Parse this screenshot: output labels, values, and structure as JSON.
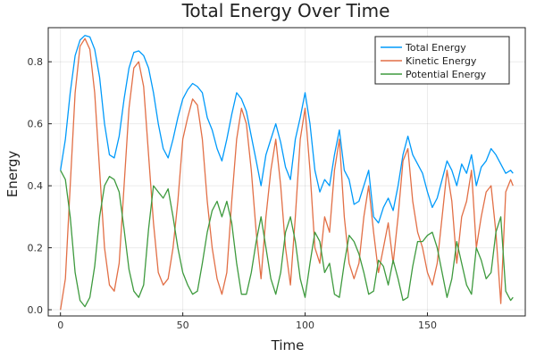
{
  "chart_data": {
    "type": "line",
    "title": "Total Energy Over Time",
    "xlabel": "Time",
    "ylabel": "Energy",
    "xlim": [
      -5,
      190
    ],
    "ylim": [
      -0.02,
      0.91
    ],
    "xticks": [
      0,
      50,
      100,
      150
    ],
    "yticks": [
      0.0,
      0.2,
      0.4,
      0.6,
      0.8
    ],
    "ytick_labels": [
      "0.0",
      "0.2",
      "0.4",
      "0.6",
      "0.8"
    ],
    "grid": true,
    "legend_position": "top-right",
    "series": [
      {
        "name": "Total Energy",
        "color": "#009AFA",
        "x": [
          0,
          2,
          4,
          6,
          8,
          10,
          12,
          14,
          16,
          18,
          20,
          22,
          24,
          26,
          28,
          30,
          32,
          34,
          36,
          38,
          40,
          42,
          44,
          46,
          48,
          50,
          52,
          54,
          56,
          58,
          60,
          62,
          64,
          66,
          68,
          70,
          72,
          74,
          76,
          78,
          80,
          82,
          84,
          86,
          88,
          90,
          92,
          94,
          96,
          98,
          100,
          102,
          104,
          106,
          108,
          110,
          112,
          114,
          116,
          118,
          120,
          122,
          124,
          126,
          128,
          130,
          132,
          134,
          136,
          138,
          140,
          142,
          144,
          146,
          148,
          150,
          152,
          154,
          156,
          158,
          160,
          162,
          164,
          166,
          168,
          170,
          172,
          174,
          176,
          178,
          180,
          182,
          184,
          185
        ],
        "y": [
          0.45,
          0.55,
          0.7,
          0.82,
          0.87,
          0.885,
          0.88,
          0.84,
          0.75,
          0.6,
          0.5,
          0.49,
          0.56,
          0.68,
          0.78,
          0.83,
          0.835,
          0.82,
          0.78,
          0.7,
          0.6,
          0.52,
          0.49,
          0.55,
          0.62,
          0.68,
          0.71,
          0.73,
          0.72,
          0.7,
          0.62,
          0.58,
          0.52,
          0.48,
          0.55,
          0.63,
          0.7,
          0.68,
          0.64,
          0.56,
          0.48,
          0.4,
          0.5,
          0.55,
          0.6,
          0.54,
          0.46,
          0.42,
          0.55,
          0.62,
          0.7,
          0.6,
          0.45,
          0.38,
          0.42,
          0.4,
          0.5,
          0.58,
          0.45,
          0.42,
          0.34,
          0.35,
          0.4,
          0.45,
          0.3,
          0.28,
          0.33,
          0.36,
          0.32,
          0.4,
          0.5,
          0.56,
          0.5,
          0.47,
          0.44,
          0.38,
          0.33,
          0.36,
          0.42,
          0.48,
          0.45,
          0.4,
          0.47,
          0.44,
          0.5,
          0.4,
          0.46,
          0.48,
          0.52,
          0.5,
          0.47,
          0.44,
          0.45,
          0.44
        ]
      },
      {
        "name": "Kinetic Energy",
        "color": "#E26F46",
        "x": [
          0,
          2,
          4,
          6,
          8,
          10,
          12,
          14,
          16,
          18,
          20,
          22,
          24,
          26,
          28,
          30,
          32,
          34,
          36,
          38,
          40,
          42,
          44,
          46,
          48,
          50,
          52,
          54,
          56,
          58,
          60,
          62,
          64,
          66,
          68,
          70,
          72,
          74,
          76,
          78,
          80,
          82,
          84,
          86,
          88,
          90,
          92,
          94,
          96,
          98,
          100,
          102,
          104,
          106,
          108,
          110,
          112,
          114,
          116,
          118,
          120,
          122,
          124,
          126,
          128,
          130,
          132,
          134,
          136,
          138,
          140,
          142,
          144,
          146,
          148,
          150,
          152,
          154,
          156,
          158,
          160,
          162,
          164,
          166,
          168,
          170,
          172,
          174,
          176,
          178,
          180,
          182,
          184,
          185
        ],
        "y": [
          0.0,
          0.1,
          0.4,
          0.7,
          0.85,
          0.875,
          0.84,
          0.7,
          0.45,
          0.2,
          0.08,
          0.06,
          0.15,
          0.4,
          0.65,
          0.78,
          0.8,
          0.72,
          0.5,
          0.28,
          0.12,
          0.08,
          0.1,
          0.2,
          0.35,
          0.55,
          0.62,
          0.68,
          0.66,
          0.55,
          0.35,
          0.2,
          0.1,
          0.05,
          0.12,
          0.35,
          0.55,
          0.65,
          0.6,
          0.45,
          0.25,
          0.1,
          0.3,
          0.45,
          0.55,
          0.4,
          0.2,
          0.08,
          0.3,
          0.55,
          0.65,
          0.45,
          0.2,
          0.15,
          0.3,
          0.25,
          0.45,
          0.55,
          0.3,
          0.15,
          0.1,
          0.15,
          0.3,
          0.4,
          0.25,
          0.12,
          0.2,
          0.28,
          0.15,
          0.3,
          0.48,
          0.52,
          0.35,
          0.25,
          0.2,
          0.12,
          0.08,
          0.15,
          0.3,
          0.45,
          0.35,
          0.15,
          0.3,
          0.35,
          0.45,
          0.2,
          0.3,
          0.38,
          0.4,
          0.25,
          0.02,
          0.38,
          0.42,
          0.4
        ]
      },
      {
        "name": "Potential Energy",
        "color": "#3E9A3E",
        "x": [
          0,
          2,
          4,
          6,
          8,
          10,
          12,
          14,
          16,
          18,
          20,
          22,
          24,
          26,
          28,
          30,
          32,
          34,
          36,
          38,
          40,
          42,
          44,
          46,
          48,
          50,
          52,
          54,
          56,
          58,
          60,
          62,
          64,
          66,
          68,
          70,
          72,
          74,
          76,
          78,
          80,
          82,
          84,
          86,
          88,
          90,
          92,
          94,
          96,
          98,
          100,
          102,
          104,
          106,
          108,
          110,
          112,
          114,
          116,
          118,
          120,
          122,
          124,
          126,
          128,
          130,
          132,
          134,
          136,
          138,
          140,
          142,
          144,
          146,
          148,
          150,
          152,
          154,
          156,
          158,
          160,
          162,
          164,
          166,
          168,
          170,
          172,
          174,
          176,
          178,
          180,
          182,
          184,
          185
        ],
        "y": [
          0.45,
          0.42,
          0.3,
          0.12,
          0.03,
          0.01,
          0.04,
          0.14,
          0.3,
          0.4,
          0.43,
          0.42,
          0.38,
          0.26,
          0.13,
          0.06,
          0.04,
          0.08,
          0.26,
          0.4,
          0.38,
          0.36,
          0.39,
          0.3,
          0.2,
          0.12,
          0.08,
          0.05,
          0.06,
          0.15,
          0.25,
          0.32,
          0.35,
          0.3,
          0.35,
          0.28,
          0.15,
          0.05,
          0.05,
          0.12,
          0.22,
          0.3,
          0.2,
          0.1,
          0.05,
          0.12,
          0.25,
          0.3,
          0.22,
          0.1,
          0.04,
          0.15,
          0.25,
          0.22,
          0.12,
          0.15,
          0.05,
          0.04,
          0.15,
          0.24,
          0.22,
          0.18,
          0.12,
          0.05,
          0.06,
          0.16,
          0.14,
          0.08,
          0.16,
          0.1,
          0.03,
          0.04,
          0.14,
          0.22,
          0.22,
          0.24,
          0.25,
          0.2,
          0.12,
          0.04,
          0.1,
          0.22,
          0.15,
          0.08,
          0.05,
          0.2,
          0.16,
          0.1,
          0.12,
          0.25,
          0.3,
          0.06,
          0.03,
          0.04
        ]
      }
    ]
  }
}
